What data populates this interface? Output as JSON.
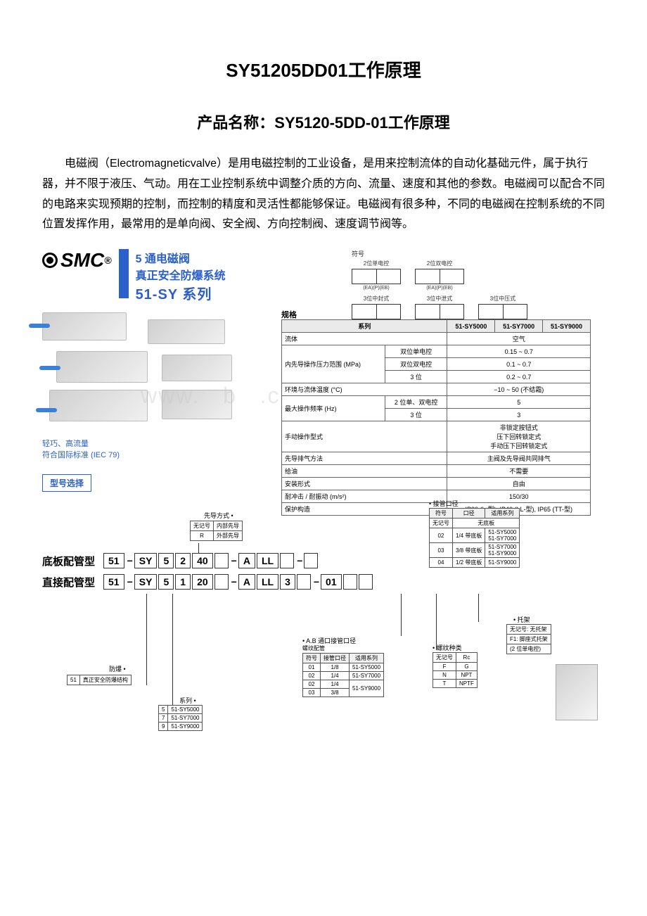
{
  "doc": {
    "title_main": "SY51205DD01工作原理",
    "title_sub": "产品名称：SY5120-5DD-01工作原理",
    "intro": "电磁阀（Electromagneticvalve）是用电磁控制的工业设备，是用来控制流体的自动化基础元件，属于执行器，并不限于液压、气动。用在工业控制系统中调整介质的方向、流量、速度和其他的参数。电磁阀可以配合不同的电路来实现预期的控制，而控制的精度和灵活性都能够保证。电磁阀有很多种，不同的电磁阀在控制系统的不同位置发挥作用，最常用的是单向阀、安全阀、方向控制阀、速度调节阀等。"
  },
  "header": {
    "brand": "SMC",
    "line1": "5 通电磁阀",
    "line2": "真正安全防爆系统",
    "line3": "51-SY 系列"
  },
  "symbols": {
    "label": "符号",
    "row1": [
      {
        "title": "2位单电控",
        "caption": "(EA)(P)(EB)"
      },
      {
        "title": "2位双电控",
        "caption": "(EA)(P)(EB)"
      }
    ],
    "row2": [
      {
        "title": "3位中封式",
        "caption": "(EA)(P)(EB)"
      },
      {
        "title": "3位中泄式",
        "caption": "(EA)(P)(EB)"
      },
      {
        "title": "3位中压式",
        "caption": "(EA)(P)(EB)"
      }
    ]
  },
  "product_caption": {
    "l1": "轻巧、高流量",
    "l2": "符合国际标准 (IEC 79)"
  },
  "spec": {
    "heading": "规格",
    "cols": [
      "系列",
      "51-SY5000",
      "51-SY7000",
      "51-SY9000"
    ],
    "rows": [
      {
        "label": "流体",
        "sub": "",
        "val": "空气",
        "span": 3
      },
      {
        "label": "内先导操作压力范围 (MPa)",
        "sub": "双位单电控",
        "val": "0.15 ~ 0.7",
        "span": 3
      },
      {
        "label": "",
        "sub": "双位双电控",
        "val": "0.1 ~ 0.7",
        "span": 3
      },
      {
        "label": "",
        "sub": "3 位",
        "val": "0.2 ~ 0.7",
        "span": 3
      },
      {
        "label": "环境与流体温度 (°C)",
        "sub": "",
        "val": "−10 ~ 50 (不结霜)",
        "span": 3
      },
      {
        "label": "最大操作频率 (Hz)",
        "sub": "2 位单、双电控",
        "val": "5",
        "span": 3
      },
      {
        "label": "",
        "sub": "3 位",
        "val": "3",
        "span": 3
      },
      {
        "label": "手动操作型式",
        "sub": "",
        "val": "非锁定按钮式\n压下回转锁定式\n手动压下回转锁定式",
        "span": 3
      },
      {
        "label": "先导排气方法",
        "sub": "",
        "val": "主阀及先导阀共同排气",
        "span": 3
      },
      {
        "label": "给油",
        "sub": "",
        "val": "不需要",
        "span": 3
      },
      {
        "label": "安装形式",
        "sub": "",
        "val": "自由",
        "span": 3
      },
      {
        "label": "耐冲击 / 耐振动 (m/s²)",
        "sub": "",
        "val": "150/30",
        "span": 3
      },
      {
        "label": "保护构造",
        "sub": "",
        "val": "IP30 (L-型), IP40 (LL-型), IP65 (TT-型)",
        "span": 3
      }
    ]
  },
  "model_select_label": "型号选择",
  "order": {
    "line1_label": "底板配管型",
    "line1": [
      "51",
      "−",
      "SY",
      "5",
      "2",
      "40",
      "",
      "−",
      "A",
      "LL",
      "",
      "−",
      ""
    ],
    "line2_label": "直接配管型",
    "line2": [
      "51",
      "−",
      "SY",
      "5",
      "1",
      "20",
      "",
      "−",
      "A",
      "LL",
      "3",
      "",
      "−",
      "01",
      "",
      ""
    ]
  },
  "pilot": {
    "title": "先导方式",
    "rows": [
      [
        "无记号",
        "内部先导"
      ],
      [
        "R",
        "外部先导"
      ]
    ]
  },
  "explosion": {
    "title": "防爆",
    "rows": [
      [
        "51",
        "真正安全防爆结构"
      ]
    ]
  },
  "series": {
    "title": "系列",
    "rows": [
      [
        "5",
        "51-SY5000"
      ],
      [
        "7",
        "51-SY7000"
      ],
      [
        "9",
        "51-SY9000"
      ]
    ]
  },
  "port_dia": {
    "title": "接管口径",
    "cols": [
      "符号",
      "口径",
      "适用系列"
    ],
    "rows": [
      [
        "无记号",
        "无底板",
        ""
      ],
      [
        "02",
        "1/4 带底板",
        "51-SY5000\n51-SY7000"
      ],
      [
        "03",
        "3/8 带底板",
        "51-SY7000\n51-SY9000"
      ],
      [
        "04",
        "1/2 带底板",
        "51-SY9000"
      ]
    ]
  },
  "ab_port": {
    "title": "A.B 通口接管口径",
    "subtitle": "螺纹配管",
    "cols": [
      "符号",
      "接管口径",
      "适用系列"
    ],
    "rows": [
      [
        "01",
        "1/8",
        "51-SY5000"
      ],
      [
        "02",
        "1/4",
        "51-SY7000"
      ],
      [
        "02",
        "1/4",
        "51-SY9000"
      ],
      [
        "03",
        "3/8",
        ""
      ]
    ]
  },
  "thread": {
    "title": "螺纹种类",
    "rows": [
      [
        "无记号",
        "Rc"
      ],
      [
        "F",
        "G"
      ],
      [
        "N",
        "NPT"
      ],
      [
        "T",
        "NPTF"
      ]
    ]
  },
  "bracket": {
    "title": "托架",
    "rows": [
      [
        "无记号: 无托架"
      ],
      [
        "F1: 脚座式托架"
      ],
      [
        "(2 位单电控)"
      ]
    ]
  },
  "colors": {
    "brand_blue": "#2a5fcc",
    "table_border": "#666666",
    "bg": "#ffffff"
  }
}
